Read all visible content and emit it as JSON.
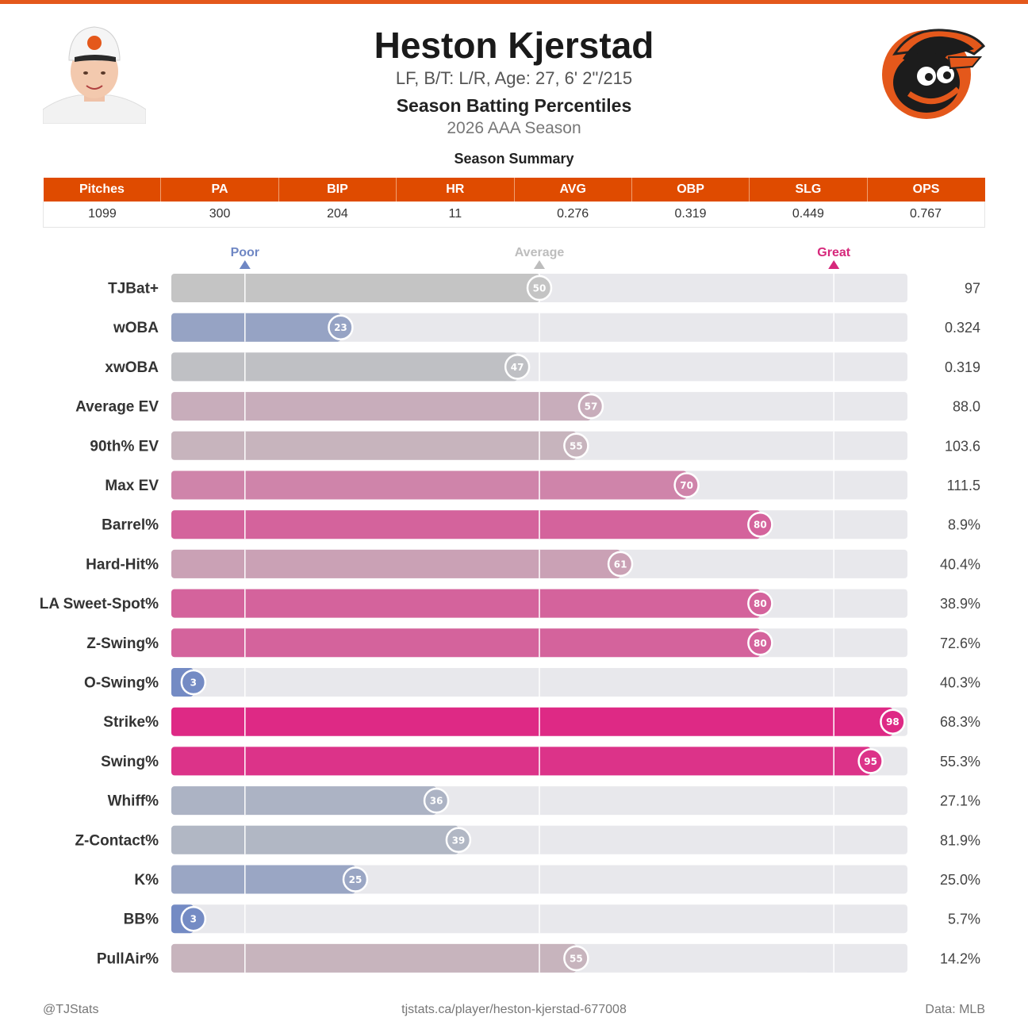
{
  "header": {
    "player_name": "Heston Kjerstad",
    "player_info": "LF, B/T: L/R, Age: 27, 6' 2\"/215",
    "report_title": "Season Batting Percentiles",
    "season_label": "2026 AAA Season",
    "summary_title": "Season Summary",
    "headshot_icon": "player-headshot-photo",
    "team_logo_icon": "orioles-cartoon-bird-logo"
  },
  "summary": {
    "columns": [
      "Pitches",
      "PA",
      "BIP",
      "HR",
      "AVG",
      "OBP",
      "SLG",
      "OPS"
    ],
    "values": [
      "1099",
      "300",
      "204",
      "11",
      "0.276",
      "0.319",
      "0.449",
      "0.767"
    ],
    "header_color": "#df4b00"
  },
  "chart_data": {
    "type": "bar",
    "orientation": "horizontal",
    "xlim": [
      0,
      100
    ],
    "reference_markers": [
      {
        "label": "Poor",
        "percentile": 10,
        "color": "#6f87c4"
      },
      {
        "label": "Average",
        "percentile": 50,
        "color": "#bdbdbd"
      },
      {
        "label": "Great",
        "percentile": 90,
        "color": "#d6287b"
      }
    ],
    "categories": [
      "TJBat+",
      "wOBA",
      "xwOBA",
      "Average EV",
      "90th% EV",
      "Max EV",
      "Barrel%",
      "Hard-Hit%",
      "LA Sweet-Spot%",
      "Z-Swing%",
      "O-Swing%",
      "Strike%",
      "Swing%",
      "Whiff%",
      "Z-Contact%",
      "K%",
      "BB%",
      "PullAir%"
    ],
    "percentiles": [
      50,
      23,
      47,
      57,
      55,
      70,
      80,
      61,
      80,
      80,
      3,
      98,
      95,
      36,
      39,
      25,
      3,
      55
    ],
    "stat_values": [
      "97",
      "0.324",
      "0.319",
      "88.0",
      "103.6",
      "111.5",
      "8.9%",
      "40.4%",
      "38.9%",
      "72.6%",
      "40.3%",
      "68.3%",
      "55.3%",
      "27.1%",
      "81.9%",
      "25.0%",
      "5.7%",
      "14.2%"
    ],
    "colors": {
      "poor": "#6f87c4",
      "average": "#c4c4c4",
      "great": "#df2382",
      "track": "#e8e8ec"
    }
  },
  "footer": {
    "left": "@TJStats",
    "center": "tjstats.ca/player/heston-kjerstad-677008",
    "right": "Data: MLB"
  }
}
